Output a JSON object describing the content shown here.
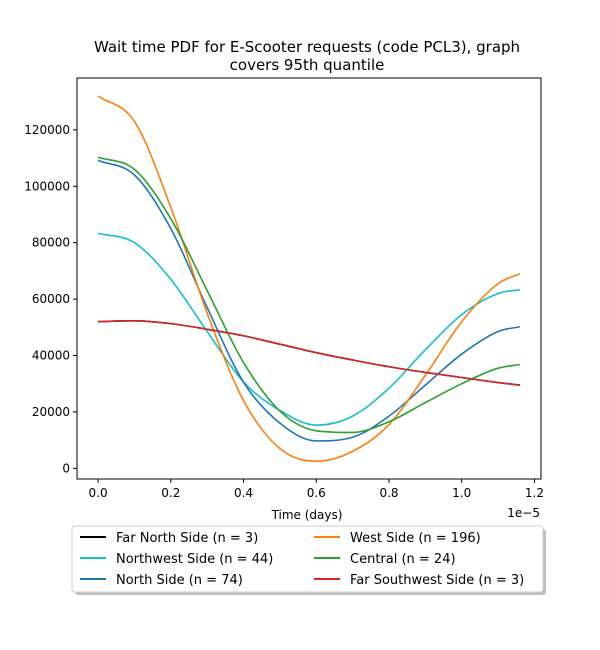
{
  "chart_data": {
    "type": "line",
    "title_line1": "Wait time PDF for E-Scooter  requests (code PCL3), graph",
    "title_line2": "covers 95th quantile",
    "xlabel": "Time (days)",
    "ylabel": "",
    "x_offset_label": "1e−5",
    "xlim": [
      -0.058,
      1.218
    ],
    "ylim": [
      -3800,
      138400
    ],
    "x_ticks": [
      0.0,
      0.2,
      0.4,
      0.6,
      0.8,
      1.0,
      1.2
    ],
    "x_tick_labels": [
      "0.0",
      "0.2",
      "0.4",
      "0.6",
      "0.8",
      "1.0",
      "1.2"
    ],
    "y_ticks": [
      0,
      20000,
      40000,
      60000,
      80000,
      100000,
      120000
    ],
    "y_tick_labels": [
      "0",
      "20000",
      "40000",
      "60000",
      "80000",
      "100000",
      "120000"
    ],
    "grid": false,
    "legend_placement": "below",
    "legend_columns": 2,
    "x": [
      0.0,
      0.1,
      0.2,
      0.3,
      0.4,
      0.5,
      0.6,
      0.7,
      0.8,
      0.9,
      1.0,
      1.1,
      1.16
    ],
    "series": [
      {
        "name": "Far North Side (n = 3)",
        "color": "#000000",
        "values": [
          52000,
          52300,
          51300,
          49300,
          47000,
          44000,
          41000,
          38400,
          36000,
          34000,
          32200,
          30400,
          29500
        ]
      },
      {
        "name": "Northwest Side (n = 44)",
        "color": "#17becf",
        "values": [
          83300,
          80000,
          67000,
          48500,
          30600,
          20500,
          15300,
          18500,
          28400,
          42000,
          54500,
          62000,
          63300
        ]
      },
      {
        "name": "North Side (n = 74)",
        "color": "#1f77b4",
        "values": [
          109200,
          104000,
          85000,
          57000,
          30500,
          16000,
          9700,
          11000,
          18500,
          29500,
          40500,
          48500,
          50200
        ]
      },
      {
        "name": "West Side (n = 196)",
        "color": "#ff7f0e",
        "values": [
          132000,
          123000,
          92500,
          55000,
          24000,
          7000,
          2500,
          6000,
          15500,
          33000,
          52000,
          65500,
          69000
        ]
      },
      {
        "name": "Central (n = 24)",
        "color": "#2ca02c",
        "values": [
          110300,
          106000,
          88500,
          63000,
          37500,
          20300,
          13300,
          12700,
          16500,
          23300,
          30000,
          35500,
          36800
        ]
      },
      {
        "name": "Far Southwest Side (n = 3)",
        "color": "#d62728",
        "values": [
          52000,
          52300,
          51300,
          49300,
          47000,
          44000,
          41000,
          38400,
          36000,
          34000,
          32200,
          30400,
          29500
        ]
      }
    ],
    "legend_order": [
      0,
      3,
      1,
      4,
      2,
      5
    ]
  }
}
